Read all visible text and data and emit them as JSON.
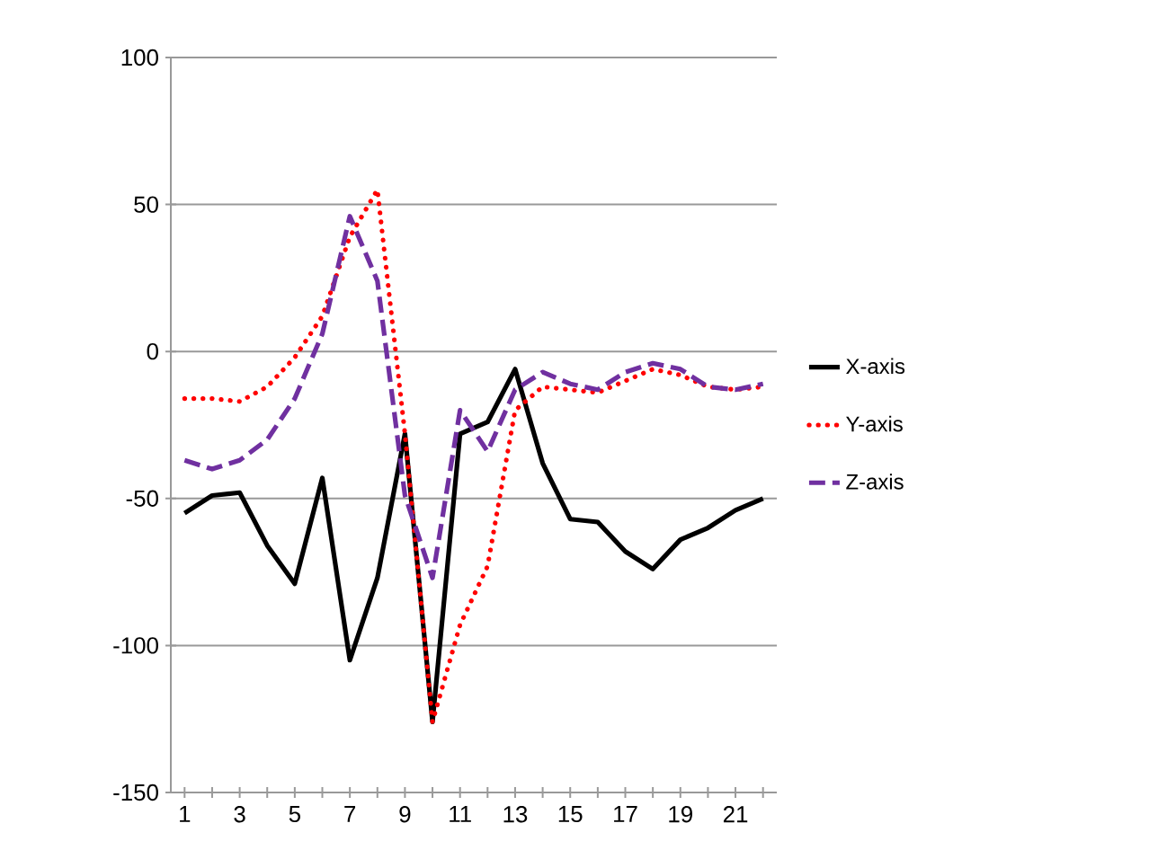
{
  "chart_data": {
    "type": "line",
    "categories": [
      "1",
      null,
      "3",
      null,
      "5",
      null,
      "7",
      null,
      "9",
      null,
      "11",
      null,
      "13",
      null,
      "15",
      null,
      "17",
      null,
      "19",
      null,
      "21",
      null
    ],
    "series": [
      {
        "name": "X-axis",
        "color": "#000000",
        "line_style": "solid",
        "values": [
          -55,
          -49,
          -48,
          -66,
          -79,
          -43,
          -105,
          -77,
          -28,
          -126,
          -28,
          -24,
          -6,
          -38,
          -57,
          -58,
          -68,
          -74,
          -64,
          -60,
          -54,
          -50
        ]
      },
      {
        "name": "Y-axis",
        "color": "#ff0000",
        "line_style": "dotted",
        "values": [
          -16,
          -16,
          -17,
          -12,
          -2,
          12,
          39,
          55,
          -28,
          -126,
          -93,
          -73,
          -20,
          -12,
          -13,
          -14,
          -10,
          -6,
          -8,
          -12,
          -13,
          -12
        ]
      },
      {
        "name": "Z-axis",
        "color": "#7030a0",
        "line_style": "dashed",
        "values": [
          -37,
          -40,
          -37,
          -30,
          -16,
          6,
          46,
          24,
          -49,
          -77,
          -20,
          -34,
          -13,
          -7,
          -11,
          -13,
          -7,
          -4,
          -6,
          -12,
          -13,
          -11
        ]
      }
    ],
    "ylim": [
      -150,
      100
    ],
    "yticks": [
      -150,
      -100,
      -50,
      0,
      50,
      100
    ],
    "grid": "y",
    "legend": "right",
    "marker": "none"
  }
}
